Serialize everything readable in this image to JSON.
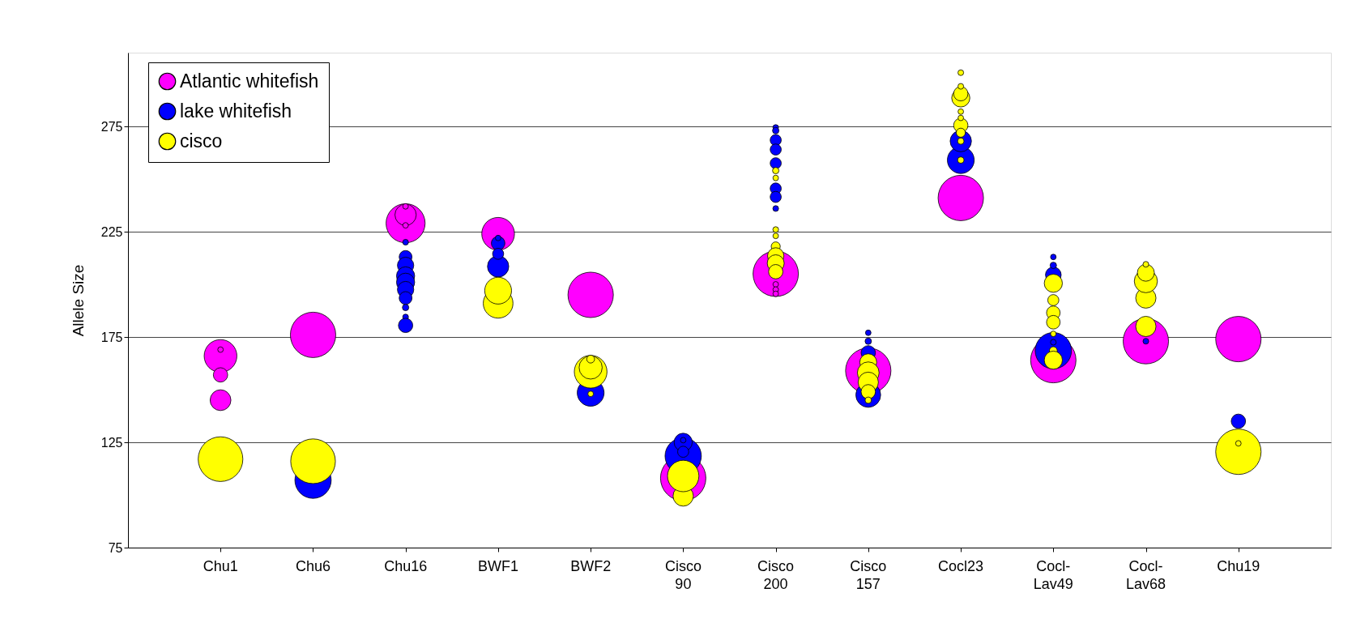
{
  "chart_data": {
    "type": "bubble",
    "ylabel": "Allele Size",
    "ylim": [
      75,
      310
    ],
    "yticks": [
      75,
      125,
      175,
      225,
      275
    ],
    "grid": "y",
    "legend": "top left",
    "categories": [
      "Chu1",
      "Chu6",
      "Chu16",
      "BWF1",
      "BWF2",
      "Cisco 90",
      "Cisco 200",
      "Cisco 157",
      "Cocl23",
      "Cocl-Lav49",
      "Cocl-Lav68",
      "Chu19"
    ],
    "series": [
      {
        "name": "Atlantic whitefish",
        "color": "#ff00ff",
        "x": [
          "Chu1",
          "Chu1",
          "Chu1",
          "Chu1",
          "Chu6",
          "Chu16",
          "Chu16",
          "Chu16",
          "Chu16",
          "BWF1",
          "BWF2",
          "Cisco 90",
          "Cisco 200",
          "Cisco 200",
          "Cisco 200",
          "Cisco 200",
          "Cisco 157",
          "Cocl23",
          "Cocl-Lav49",
          "Cocl-Lav68",
          "Chu19"
        ],
        "values": [
          166,
          157,
          145,
          169,
          176,
          229,
          233,
          237,
          228,
          224,
          195,
          108,
          205,
          200,
          197.5,
          195.5,
          159,
          241,
          164,
          173,
          174
        ],
        "sizes": [
          0.52,
          0.1,
          0.21,
          0.015,
          1,
          0.74,
          0.22,
          0.015,
          0.015,
          0.52,
          1,
          1,
          1,
          0.015,
          0.015,
          0.015,
          1,
          1,
          1,
          1,
          1
        ]
      },
      {
        "name": "lake whitefish",
        "color": "#0000ff",
        "x": [
          "Chu6",
          "Chu16",
          "Chu16",
          "Chu16",
          "Chu16",
          "Chu16",
          "Chu16",
          "Chu16",
          "Chu16",
          "Chu16",
          "Chu16",
          "BWF1",
          "BWF1",
          "BWF1",
          "BWF1",
          "BWF2",
          "Cisco 90",
          "Cisco 90",
          "Cisco 90",
          "Cisco 90",
          "Cisco 200",
          "Cisco 200",
          "Cisco 200",
          "Cisco 200",
          "Cisco 200",
          "Cisco 200",
          "Cisco 200",
          "Cisco 200",
          "Cisco 157",
          "Cisco 157",
          "Cisco 157",
          "Cisco 157",
          "Cocl23",
          "Cocl23",
          "Cocl-Lav49",
          "Cocl-Lav49",
          "Cocl-Lav49",
          "Cocl-Lav49",
          "Cocl-Lav49",
          "Cocl-Lav68",
          "Chu19"
        ],
        "values": [
          107,
          220,
          213,
          209,
          204,
          201,
          197.5,
          193.5,
          189,
          184.5,
          180.5,
          208.5,
          219.5,
          214.5,
          222,
          148.5,
          118.5,
          125,
          120.5,
          126,
          274.5,
          273,
          268.5,
          264,
          257.5,
          245.5,
          241.5,
          236,
          147.5,
          167.5,
          173,
          177,
          259,
          268,
          168.5,
          204.5,
          209,
          213,
          172.5,
          173,
          135
        ],
        "sizes": [
          0.64,
          0.016,
          0.08,
          0.13,
          0.16,
          0.16,
          0.13,
          0.08,
          0.02,
          0.016,
          0.1,
          0.22,
          0.09,
          0.06,
          0.015,
          0.35,
          0.64,
          0.16,
          0.06,
          0.015,
          0.015,
          0.02,
          0.06,
          0.06,
          0.06,
          0.06,
          0.06,
          0.016,
          0.3,
          0.1,
          0.02,
          0.015,
          0.35,
          0.22,
          0.64,
          0.12,
          0.02,
          0.015,
          0.016,
          0.016,
          0.1
        ]
      },
      {
        "name": "cisco",
        "color": "#ffff00",
        "x": [
          "Chu1",
          "Chu6",
          "BWF1",
          "BWF1",
          "BWF2",
          "BWF2",
          "BWF2",
          "BWF2",
          "Cisco 90",
          "Cisco 90",
          "Cisco 200",
          "Cisco 200",
          "Cisco 200",
          "Cisco 200",
          "Cisco 200",
          "Cisco 200",
          "Cisco 200",
          "Cisco 200",
          "Cisco 157",
          "Cisco 157",
          "Cisco 157",
          "Cisco 157",
          "Cisco 157",
          "Cocl23",
          "Cocl23",
          "Cocl23",
          "Cocl23",
          "Cocl23",
          "Cocl23",
          "Cocl23",
          "Cocl23",
          "Cocl23",
          "Cocl23",
          "Cocl-Lav49",
          "Cocl-Lav49",
          "Cocl-Lav49",
          "Cocl-Lav49",
          "Cocl-Lav49",
          "Cocl-Lav49",
          "Cocl-Lav49",
          "Cocl-Lav68",
          "Cocl-Lav68",
          "Cocl-Lav68",
          "Cocl-Lav68",
          "Cocl-Lav68",
          "Chu19",
          "Chu19"
        ],
        "values": [
          117,
          116,
          191,
          197,
          158.5,
          160.5,
          164.5,
          148,
          99.5,
          109,
          254,
          250.5,
          226,
          223,
          218,
          213.5,
          210,
          206,
          163,
          158,
          153.5,
          149,
          145,
          259,
          268,
          275.5,
          272,
          279,
          282,
          288.5,
          290.5,
          294,
          300.5,
          200.5,
          192.5,
          186.5,
          182,
          176.5,
          168.5,
          164,
          180,
          193.5,
          201.5,
          205.5,
          209.5,
          120.5,
          124.5
        ],
        "sizes": [
          0.97,
          0.97,
          0.43,
          0.35,
          0.52,
          0.26,
          0.03,
          0.015,
          0.2,
          0.48,
          0.02,
          0.015,
          0.016,
          0.015,
          0.04,
          0.13,
          0.14,
          0.1,
          0.14,
          0.23,
          0.2,
          0.1,
          0.02,
          0.02,
          0.02,
          0.1,
          0.04,
          0.015,
          0.015,
          0.16,
          0.1,
          0.016,
          0.016,
          0.16,
          0.06,
          0.09,
          0.09,
          0.015,
          0.03,
          0.16,
          0.2,
          0.2,
          0.26,
          0.14,
          0.016,
          1,
          0.015
        ]
      }
    ]
  }
}
